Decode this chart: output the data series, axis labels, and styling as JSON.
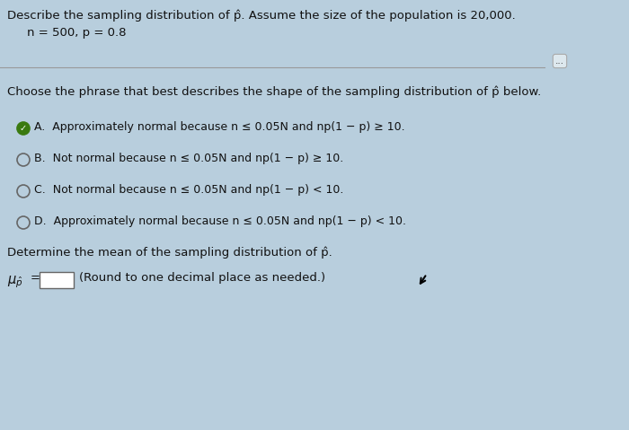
{
  "background_color": "#b8cedd",
  "title_line1": "Describe the sampling distribution of p̂. Assume the size of the population is 20,000.",
  "title_line2": "n = 500, p = 0.8",
  "question_intro": "Choose the phrase that best describes the shape of the sampling distribution of p̂ below.",
  "options": [
    "A.  Approximately normal because n ≤ 0.05N and np(1 − p) ≥ 10.",
    "B.  Not normal because n ≤ 0.05N and np(1 − p) ≥ 10.",
    "C.  Not normal because n ≤ 0.05N and np(1 − p) < 10.",
    "D.  Approximately normal because n ≤ 0.05N and np(1 − p) < 10."
  ],
  "selected_option": 0,
  "mean_line": "(Round to one decimal place as needed.)",
  "dots_button_text": "...",
  "text_color": "#111111",
  "font_size_main": 9.5,
  "font_size_options": 9.0,
  "radio_color_selected": "#3a7a10",
  "radio_color_unselected": "#666666",
  "divider_color": "#999999"
}
